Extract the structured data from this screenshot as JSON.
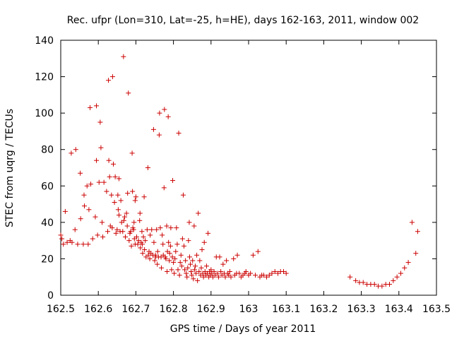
{
  "chart_data": {
    "type": "scatter",
    "title": "Rec. ufpr (Lon=310, Lat=-25, h=HE), days 162-163, 2011, window 002",
    "xlabel": "GPS time / Days of year 2011",
    "ylabel": "STEC from uqrg / TECUs",
    "xlim": [
      162.5,
      163.5
    ],
    "ylim": [
      0,
      140
    ],
    "x_ticks": [
      "162.5",
      "162.6",
      "162.7",
      "162.8",
      "162.9",
      "163",
      "163.1",
      "163.2",
      "163.3",
      "163.4",
      "163.5"
    ],
    "y_ticks": [
      "0",
      "20",
      "40",
      "60",
      "80",
      "100",
      "120",
      "140"
    ],
    "grid": false,
    "legend": "none",
    "marker": "+",
    "color": "#cc0000",
    "series": [
      {
        "points": [
          [
            162.5,
            33
          ],
          [
            162.503,
            31
          ],
          [
            162.507,
            28
          ],
          [
            162.512,
            46
          ],
          [
            162.517,
            29
          ],
          [
            162.525,
            30
          ],
          [
            162.528,
            78
          ],
          [
            162.53,
            29
          ],
          [
            162.538,
            36
          ],
          [
            162.54,
            80
          ],
          [
            162.545,
            28
          ],
          [
            162.552,
            67
          ],
          [
            162.553,
            42
          ],
          [
            162.56,
            28
          ],
          [
            162.562,
            55
          ],
          [
            162.563,
            49
          ],
          [
            162.57,
            60
          ],
          [
            162.573,
            28
          ],
          [
            162.575,
            47
          ],
          [
            162.578,
            103
          ],
          [
            162.58,
            61
          ],
          [
            162.585,
            31
          ],
          [
            162.592,
            43
          ],
          [
            162.595,
            104
          ],
          [
            162.595,
            74
          ],
          [
            162.598,
            33
          ],
          [
            162.602,
            62
          ],
          [
            162.605,
            95
          ],
          [
            162.607,
            81
          ],
          [
            162.61,
            40
          ],
          [
            162.612,
            32
          ],
          [
            162.615,
            62
          ],
          [
            162.622,
            57
          ],
          [
            162.625,
            35
          ],
          [
            162.627,
            118
          ],
          [
            162.628,
            74
          ],
          [
            162.63,
            65
          ],
          [
            162.632,
            38
          ],
          [
            162.635,
            55
          ],
          [
            162.637,
            37
          ],
          [
            162.638,
            120
          ],
          [
            162.64,
            72
          ],
          [
            162.643,
            51
          ],
          [
            162.645,
            65
          ],
          [
            162.647,
            34
          ],
          [
            162.65,
            36
          ],
          [
            162.652,
            55
          ],
          [
            162.653,
            47
          ],
          [
            162.655,
            64
          ],
          [
            162.655,
            44
          ],
          [
            162.658,
            35
          ],
          [
            162.66,
            52
          ],
          [
            162.662,
            40
          ],
          [
            162.665,
            35
          ],
          [
            162.667,
            131
          ],
          [
            162.668,
            41
          ],
          [
            162.67,
            43
          ],
          [
            162.672,
            32
          ],
          [
            162.675,
            45
          ],
          [
            162.677,
            38
          ],
          [
            162.678,
            56
          ],
          [
            162.68,
            111
          ],
          [
            162.682,
            30
          ],
          [
            162.684,
            34
          ],
          [
            162.686,
            35
          ],
          [
            162.688,
            27
          ],
          [
            162.69,
            78
          ],
          [
            162.691,
            57
          ],
          [
            162.692,
            37
          ],
          [
            162.694,
            36
          ],
          [
            162.695,
            40
          ],
          [
            162.696,
            31
          ],
          [
            162.698,
            52
          ],
          [
            162.698,
            28
          ],
          [
            162.7,
            54
          ],
          [
            162.702,
            32
          ],
          [
            162.705,
            28
          ],
          [
            162.707,
            30
          ],
          [
            162.71,
            41
          ],
          [
            162.711,
            45
          ],
          [
            162.712,
            26
          ],
          [
            162.714,
            29
          ],
          [
            162.716,
            35
          ],
          [
            162.717,
            28
          ],
          [
            162.718,
            23
          ],
          [
            162.72,
            32
          ],
          [
            162.722,
            54
          ],
          [
            162.723,
            25
          ],
          [
            162.725,
            30
          ],
          [
            162.727,
            21
          ],
          [
            162.73,
            36
          ],
          [
            162.732,
            70
          ],
          [
            162.733,
            22
          ],
          [
            162.735,
            24
          ],
          [
            162.737,
            20
          ],
          [
            162.738,
            33
          ],
          [
            162.74,
            23
          ],
          [
            162.742,
            36
          ],
          [
            162.745,
            22
          ],
          [
            162.747,
            91
          ],
          [
            162.748,
            29
          ],
          [
            162.75,
            19
          ],
          [
            162.752,
            22
          ],
          [
            162.753,
            21
          ],
          [
            162.755,
            36
          ],
          [
            162.757,
            17
          ],
          [
            162.758,
            24
          ],
          [
            162.76,
            21
          ],
          [
            162.762,
            88
          ],
          [
            162.763,
            100
          ],
          [
            162.765,
            37
          ],
          [
            162.767,
            21
          ],
          [
            162.768,
            15
          ],
          [
            162.77,
            33
          ],
          [
            162.772,
            28
          ],
          [
            162.773,
            22
          ],
          [
            162.775,
            59
          ],
          [
            162.776,
            102
          ],
          [
            162.778,
            21
          ],
          [
            162.78,
            20
          ],
          [
            162.782,
            38
          ],
          [
            162.783,
            13
          ],
          [
            162.784,
            24
          ],
          [
            162.786,
            98
          ],
          [
            162.787,
            29
          ],
          [
            162.789,
            19
          ],
          [
            162.79,
            23
          ],
          [
            162.792,
            27
          ],
          [
            162.793,
            37
          ],
          [
            162.795,
            14
          ],
          [
            162.797,
            21
          ],
          [
            162.798,
            63
          ],
          [
            162.8,
            18
          ],
          [
            162.802,
            12
          ],
          [
            162.804,
            20
          ],
          [
            162.806,
            24
          ],
          [
            162.808,
            37
          ],
          [
            162.81,
            28
          ],
          [
            162.812,
            14
          ],
          [
            162.814,
            89
          ],
          [
            162.816,
            11
          ],
          [
            162.818,
            18
          ],
          [
            162.82,
            22
          ],
          [
            162.822,
            16
          ],
          [
            162.824,
            31
          ],
          [
            162.826,
            55
          ],
          [
            162.828,
            27
          ],
          [
            162.83,
            14
          ],
          [
            162.832,
            19
          ],
          [
            162.834,
            12
          ],
          [
            162.836,
            10
          ],
          [
            162.838,
            15
          ],
          [
            162.84,
            30
          ],
          [
            162.842,
            40
          ],
          [
            162.843,
            21
          ],
          [
            162.845,
            17
          ],
          [
            162.847,
            13
          ],
          [
            162.849,
            11
          ],
          [
            162.851,
            19
          ],
          [
            162.853,
            9
          ],
          [
            162.855,
            38
          ],
          [
            162.856,
            14
          ],
          [
            162.858,
            16
          ],
          [
            162.86,
            12
          ],
          [
            162.862,
            22
          ],
          [
            162.864,
            8
          ],
          [
            162.866,
            45
          ],
          [
            162.868,
            13
          ],
          [
            162.87,
            19
          ],
          [
            162.872,
            11
          ],
          [
            162.874,
            15
          ],
          [
            162.876,
            25
          ],
          [
            162.878,
            12
          ],
          [
            162.88,
            10
          ],
          [
            162.882,
            29
          ],
          [
            162.884,
            13
          ],
          [
            162.886,
            11
          ],
          [
            162.888,
            16
          ],
          [
            162.89,
            12
          ],
          [
            162.892,
            34
          ],
          [
            162.894,
            10
          ],
          [
            162.896,
            13
          ],
          [
            162.898,
            11
          ],
          [
            162.9,
            14
          ],
          [
            162.902,
            12
          ],
          [
            162.905,
            10
          ],
          [
            162.908,
            13
          ],
          [
            162.911,
            11
          ],
          [
            162.914,
            21
          ],
          [
            162.917,
            12
          ],
          [
            162.92,
            10
          ],
          [
            162.923,
            21
          ],
          [
            162.926,
            13
          ],
          [
            162.929,
            11
          ],
          [
            162.932,
            17
          ],
          [
            162.935,
            12
          ],
          [
            162.938,
            10
          ],
          [
            162.941,
            19
          ],
          [
            162.944,
            12
          ],
          [
            162.947,
            11
          ],
          [
            162.95,
            13
          ],
          [
            162.953,
            10
          ],
          [
            162.96,
            20
          ],
          [
            162.963,
            11
          ],
          [
            162.968,
            12
          ],
          [
            162.97,
            22
          ],
          [
            162.975,
            12
          ],
          [
            162.98,
            10
          ],
          [
            162.985,
            11
          ],
          [
            162.99,
            12
          ],
          [
            162.993,
            13
          ],
          [
            163.0,
            11
          ],
          [
            163.005,
            12
          ],
          [
            163.012,
            22
          ],
          [
            163.018,
            11
          ],
          [
            163.025,
            24
          ],
          [
            163.03,
            10
          ],
          [
            163.035,
            11
          ],
          [
            163.04,
            11
          ],
          [
            163.048,
            10
          ],
          [
            163.055,
            11
          ],
          [
            163.062,
            12
          ],
          [
            163.07,
            13
          ],
          [
            163.078,
            12
          ],
          [
            163.085,
            13
          ],
          [
            163.093,
            13
          ],
          [
            163.1,
            12
          ],
          [
            163.27,
            10
          ],
          [
            163.285,
            8
          ],
          [
            163.295,
            7
          ],
          [
            163.305,
            7
          ],
          [
            163.315,
            6
          ],
          [
            163.325,
            6
          ],
          [
            163.335,
            6
          ],
          [
            163.345,
            5
          ],
          [
            163.355,
            5
          ],
          [
            163.365,
            6
          ],
          [
            163.375,
            6
          ],
          [
            163.385,
            8
          ],
          [
            163.395,
            10
          ],
          [
            163.405,
            12
          ],
          [
            163.415,
            15
          ],
          [
            163.425,
            18
          ],
          [
            163.435,
            40
          ],
          [
            163.445,
            23
          ],
          [
            163.45,
            35
          ]
        ]
      }
    ]
  }
}
